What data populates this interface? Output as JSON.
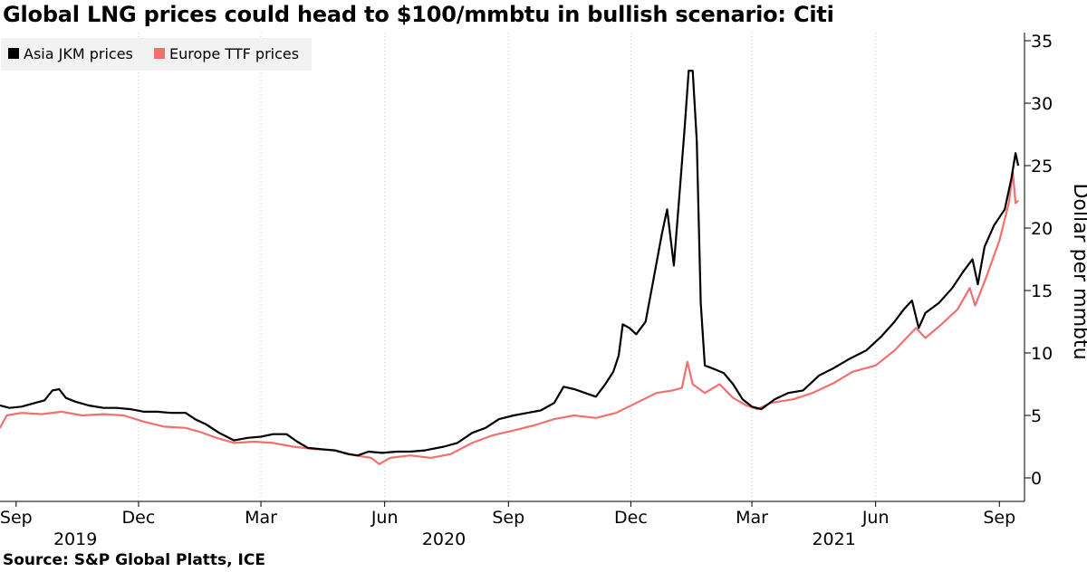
{
  "title": "Global LNG prices could head to $100/mmbtu in bullish scenario: Citi",
  "source": "Source: S&P Global Platts, ICE",
  "chart_data": {
    "type": "line",
    "ylabel": "Dollar per mmbtu",
    "ylim": [
      -2,
      36
    ],
    "yticks": [
      0,
      5,
      10,
      15,
      20,
      25,
      30,
      35
    ],
    "grid": "vertical dotted at month ticks",
    "legend_position": "top-left",
    "x_ticks": [
      {
        "label": "Sep",
        "date": "2019-09-01"
      },
      {
        "label": "Dec",
        "date": "2019-12-01"
      },
      {
        "label": "Mar",
        "date": "2020-03-01"
      },
      {
        "label": "Jun",
        "date": "2020-06-01"
      },
      {
        "label": "Sep",
        "date": "2020-09-01"
      },
      {
        "label": "Dec",
        "date": "2020-12-01"
      },
      {
        "label": "Mar",
        "date": "2021-03-01"
      },
      {
        "label": "Jun",
        "date": "2021-06-01"
      },
      {
        "label": "Sep",
        "date": "2021-09-01"
      }
    ],
    "year_labels": [
      {
        "label": "2019",
        "date": "2019-10-15"
      },
      {
        "label": "2020",
        "date": "2020-07-15"
      },
      {
        "label": "2021",
        "date": "2021-05-01"
      }
    ],
    "series": [
      {
        "name": "Asia JKM prices",
        "color": "#000000",
        "points": [
          [
            "2019-08-20",
            5.8
          ],
          [
            "2019-08-27",
            5.6
          ],
          [
            "2019-09-05",
            5.7
          ],
          [
            "2019-09-15",
            6.0
          ],
          [
            "2019-09-22",
            6.2
          ],
          [
            "2019-09-28",
            7.0
          ],
          [
            "2019-10-03",
            7.1
          ],
          [
            "2019-10-08",
            6.4
          ],
          [
            "2019-10-15",
            6.1
          ],
          [
            "2019-10-25",
            5.8
          ],
          [
            "2019-11-05",
            5.6
          ],
          [
            "2019-11-15",
            5.6
          ],
          [
            "2019-11-25",
            5.5
          ],
          [
            "2019-12-05",
            5.3
          ],
          [
            "2019-12-15",
            5.3
          ],
          [
            "2019-12-25",
            5.2
          ],
          [
            "2020-01-05",
            5.2
          ],
          [
            "2020-01-12",
            4.7
          ],
          [
            "2020-01-20",
            4.3
          ],
          [
            "2020-01-30",
            3.6
          ],
          [
            "2020-02-10",
            3.0
          ],
          [
            "2020-02-20",
            3.2
          ],
          [
            "2020-03-01",
            3.3
          ],
          [
            "2020-03-10",
            3.5
          ],
          [
            "2020-03-20",
            3.5
          ],
          [
            "2020-03-28",
            2.9
          ],
          [
            "2020-04-05",
            2.4
          ],
          [
            "2020-04-15",
            2.3
          ],
          [
            "2020-04-25",
            2.2
          ],
          [
            "2020-05-05",
            1.9
          ],
          [
            "2020-05-12",
            1.8
          ],
          [
            "2020-05-20",
            2.1
          ],
          [
            "2020-05-30",
            2.0
          ],
          [
            "2020-06-10",
            2.1
          ],
          [
            "2020-06-20",
            2.1
          ],
          [
            "2020-07-01",
            2.2
          ],
          [
            "2020-07-15",
            2.5
          ],
          [
            "2020-07-25",
            2.8
          ],
          [
            "2020-08-05",
            3.6
          ],
          [
            "2020-08-15",
            4.0
          ],
          [
            "2020-08-25",
            4.7
          ],
          [
            "2020-09-05",
            5.0
          ],
          [
            "2020-09-15",
            5.2
          ],
          [
            "2020-09-25",
            5.4
          ],
          [
            "2020-10-05",
            6.0
          ],
          [
            "2020-10-12",
            7.3
          ],
          [
            "2020-10-20",
            7.1
          ],
          [
            "2020-10-28",
            6.8
          ],
          [
            "2020-11-05",
            6.5
          ],
          [
            "2020-11-12",
            7.5
          ],
          [
            "2020-11-18",
            8.5
          ],
          [
            "2020-11-22",
            9.8
          ],
          [
            "2020-11-25",
            12.3
          ],
          [
            "2020-11-30",
            12.0
          ],
          [
            "2020-12-05",
            11.5
          ],
          [
            "2020-12-12",
            12.5
          ],
          [
            "2020-12-18",
            16.0
          ],
          [
            "2020-12-24",
            19.5
          ],
          [
            "2020-12-28",
            21.5
          ],
          [
            "2021-01-02",
            17.0
          ],
          [
            "2021-01-06",
            22.5
          ],
          [
            "2021-01-10",
            28.0
          ],
          [
            "2021-01-13",
            32.6
          ],
          [
            "2021-01-16",
            32.6
          ],
          [
            "2021-01-19",
            27.0
          ],
          [
            "2021-01-22",
            14.0
          ],
          [
            "2021-01-25",
            9.0
          ],
          [
            "2021-01-30",
            8.8
          ],
          [
            "2021-02-08",
            8.4
          ],
          [
            "2021-02-15",
            7.5
          ],
          [
            "2021-02-22",
            6.3
          ],
          [
            "2021-03-01",
            5.7
          ],
          [
            "2021-03-08",
            5.5
          ],
          [
            "2021-03-18",
            6.3
          ],
          [
            "2021-03-28",
            6.8
          ],
          [
            "2021-04-08",
            7.0
          ],
          [
            "2021-04-20",
            8.2
          ],
          [
            "2021-05-01",
            8.8
          ],
          [
            "2021-05-12",
            9.5
          ],
          [
            "2021-05-25",
            10.2
          ],
          [
            "2021-06-05",
            11.3
          ],
          [
            "2021-06-15",
            12.5
          ],
          [
            "2021-06-22",
            13.5
          ],
          [
            "2021-06-28",
            14.2
          ],
          [
            "2021-07-03",
            12.0
          ],
          [
            "2021-07-08",
            13.2
          ],
          [
            "2021-07-18",
            14.0
          ],
          [
            "2021-07-28",
            15.2
          ],
          [
            "2021-08-05",
            16.5
          ],
          [
            "2021-08-12",
            17.5
          ],
          [
            "2021-08-16",
            15.5
          ],
          [
            "2021-08-21",
            18.5
          ],
          [
            "2021-08-28",
            20.2
          ],
          [
            "2021-09-05",
            21.5
          ],
          [
            "2021-09-10",
            24.0
          ],
          [
            "2021-09-13",
            26.0
          ],
          [
            "2021-09-15",
            25.0
          ]
        ]
      },
      {
        "name": "Europe TTF prices",
        "color": "#f07070",
        "points": [
          [
            "2019-08-20",
            4.0
          ],
          [
            "2019-08-25",
            5.0
          ],
          [
            "2019-09-05",
            5.2
          ],
          [
            "2019-09-20",
            5.1
          ],
          [
            "2019-10-05",
            5.3
          ],
          [
            "2019-10-20",
            5.0
          ],
          [
            "2019-11-05",
            5.1
          ],
          [
            "2019-11-20",
            5.0
          ],
          [
            "2019-12-05",
            4.5
          ],
          [
            "2019-12-20",
            4.1
          ],
          [
            "2020-01-05",
            4.0
          ],
          [
            "2020-01-15",
            3.7
          ],
          [
            "2020-01-28",
            3.2
          ],
          [
            "2020-02-10",
            2.8
          ],
          [
            "2020-02-25",
            2.9
          ],
          [
            "2020-03-10",
            2.8
          ],
          [
            "2020-03-25",
            2.5
          ],
          [
            "2020-04-10",
            2.3
          ],
          [
            "2020-04-25",
            2.2
          ],
          [
            "2020-05-10",
            1.8
          ],
          [
            "2020-05-22",
            1.6
          ],
          [
            "2020-05-28",
            1.1
          ],
          [
            "2020-06-05",
            1.6
          ],
          [
            "2020-06-20",
            1.8
          ],
          [
            "2020-07-05",
            1.6
          ],
          [
            "2020-07-20",
            1.9
          ],
          [
            "2020-08-05",
            2.8
          ],
          [
            "2020-08-20",
            3.4
          ],
          [
            "2020-09-05",
            3.8
          ],
          [
            "2020-09-20",
            4.2
          ],
          [
            "2020-10-05",
            4.7
          ],
          [
            "2020-10-20",
            5.0
          ],
          [
            "2020-11-05",
            4.8
          ],
          [
            "2020-11-20",
            5.2
          ],
          [
            "2020-12-05",
            6.0
          ],
          [
            "2020-12-20",
            6.8
          ],
          [
            "2021-01-01",
            7.0
          ],
          [
            "2021-01-08",
            7.2
          ],
          [
            "2021-01-12",
            9.3
          ],
          [
            "2021-01-16",
            7.5
          ],
          [
            "2021-01-25",
            6.8
          ],
          [
            "2021-02-05",
            7.5
          ],
          [
            "2021-02-15",
            6.4
          ],
          [
            "2021-02-25",
            5.8
          ],
          [
            "2021-03-05",
            5.5
          ],
          [
            "2021-03-15",
            6.0
          ],
          [
            "2021-04-01",
            6.3
          ],
          [
            "2021-04-15",
            6.8
          ],
          [
            "2021-05-01",
            7.6
          ],
          [
            "2021-05-15",
            8.5
          ],
          [
            "2021-06-01",
            9.0
          ],
          [
            "2021-06-15",
            10.2
          ],
          [
            "2021-07-01",
            12.0
          ],
          [
            "2021-07-08",
            11.2
          ],
          [
            "2021-07-20",
            12.3
          ],
          [
            "2021-08-01",
            13.5
          ],
          [
            "2021-08-10",
            15.2
          ],
          [
            "2021-08-14",
            13.8
          ],
          [
            "2021-08-22",
            16.0
          ],
          [
            "2021-09-01",
            19.0
          ],
          [
            "2021-09-08",
            22.0
          ],
          [
            "2021-09-11",
            24.5
          ],
          [
            "2021-09-13",
            22.0
          ],
          [
            "2021-09-15",
            22.2
          ]
        ]
      }
    ]
  }
}
